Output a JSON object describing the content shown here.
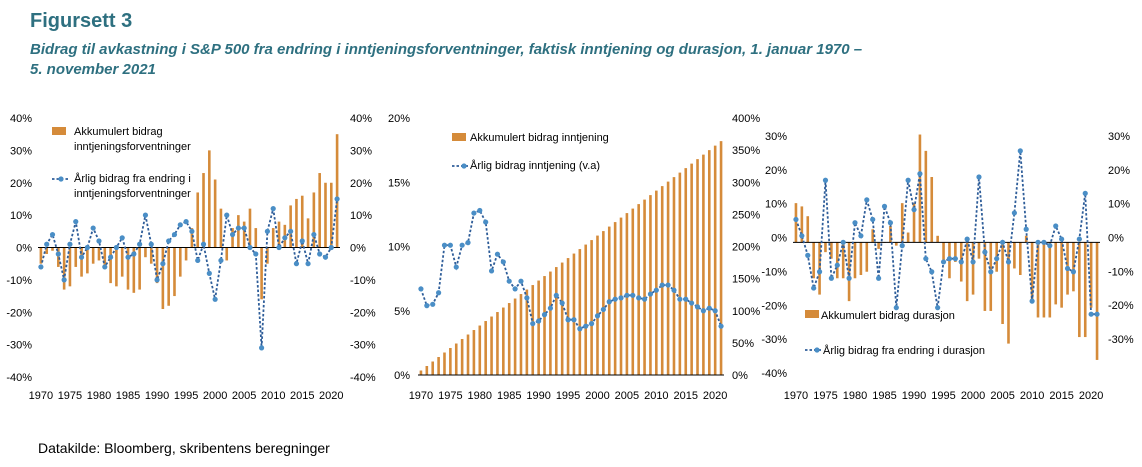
{
  "header": {
    "title": "Figursett 3",
    "subtitle_line1": "Bidrag til avkastning i S&P 500 fra endring i inntjeningsforventninger, faktisk inntjening og durasjon, 1. januar 1970 –",
    "subtitle_line2": "5. november 2021"
  },
  "footer": {
    "source": "Datakilde: Bloomberg, skribentens beregninger"
  },
  "colors": {
    "bar": "#d58b3a",
    "line": "#2e5d99",
    "marker": "#4a8ec6"
  },
  "chart_data": [
    {
      "type": "bar+line",
      "years": [
        1970,
        1971,
        1972,
        1973,
        1974,
        1975,
        1976,
        1977,
        1978,
        1979,
        1980,
        1981,
        1982,
        1983,
        1984,
        1985,
        1986,
        1987,
        1988,
        1989,
        1990,
        1991,
        1992,
        1993,
        1994,
        1995,
        1996,
        1997,
        1998,
        1999,
        2000,
        2001,
        2002,
        2003,
        2004,
        2005,
        2006,
        2007,
        2008,
        2009,
        2010,
        2011,
        2012,
        2013,
        2014,
        2015,
        2016,
        2017,
        2018,
        2019,
        2020,
        2021
      ],
      "x_ticks": [
        "1970",
        "1975",
        "1980",
        "1985",
        "1990",
        "1995",
        "2000",
        "2005",
        "2010",
        "2015",
        "2020"
      ],
      "left_ticks": [
        "40%",
        "30%",
        "20%",
        "10%",
        "0%",
        "-10%",
        "-20%",
        "-30%",
        "-40%"
      ],
      "right_ticks": [
        "40%",
        "30%",
        "20%",
        "10%",
        "0%",
        "-10%",
        "-20%",
        "-30%",
        "-40%"
      ],
      "left_range": [
        -40,
        40
      ],
      "right_range": [
        -40,
        40
      ],
      "bars_axis": "left",
      "line_axis": "right",
      "legend": [
        "Akkumulert bidrag",
        "inntjeningsforventninger",
        "Årlig bidrag fra endring i",
        "inntjeningsforventninger"
      ],
      "bars": [
        -5,
        -2,
        -1,
        -6,
        -13,
        -12,
        -6,
        -9,
        -8,
        -5,
        -4,
        -6,
        -11,
        -12,
        -9,
        -13,
        -14,
        -13,
        -3,
        -5,
        -11,
        -19,
        -18,
        -15,
        -9,
        -4,
        6,
        17,
        23,
        30,
        21,
        12,
        -4,
        6,
        10,
        8,
        12,
        6,
        -16,
        -5,
        6,
        8,
        7,
        13,
        15,
        16,
        9,
        17,
        23,
        20,
        20,
        35
      ],
      "line": [
        -6,
        1,
        4,
        -2,
        -10,
        1,
        8,
        -3,
        0,
        6,
        2,
        -6,
        -3,
        0,
        3,
        -3,
        -2,
        1,
        10,
        1,
        -10,
        -5,
        2,
        4,
        7,
        8,
        5,
        -4,
        1,
        -8,
        -16,
        -4,
        10,
        4,
        6,
        6,
        0,
        -2,
        -31,
        5,
        12,
        0,
        3,
        5,
        -5,
        2,
        -5,
        4,
        -2,
        -3,
        0,
        15
      ]
    },
    {
      "type": "bar+line",
      "years": [
        1970,
        1971,
        1972,
        1973,
        1974,
        1975,
        1976,
        1977,
        1978,
        1979,
        1980,
        1981,
        1982,
        1983,
        1984,
        1985,
        1986,
        1987,
        1988,
        1989,
        1990,
        1991,
        1992,
        1993,
        1994,
        1995,
        1996,
        1997,
        1998,
        1999,
        2000,
        2001,
        2002,
        2003,
        2004,
        2005,
        2006,
        2007,
        2008,
        2009,
        2010,
        2011,
        2012,
        2013,
        2014,
        2015,
        2016,
        2017,
        2018,
        2019,
        2020,
        2021
      ],
      "x_ticks": [
        "1970",
        "1975",
        "1980",
        "1985",
        "1990",
        "1995",
        "2000",
        "2005",
        "2010",
        "2015",
        "2020"
      ],
      "left_ticks": [
        "20%",
        "15%",
        "10%",
        "5%",
        "0%"
      ],
      "right_ticks": [
        "400%",
        "350%",
        "300%",
        "250%",
        "200%",
        "150%",
        "100%",
        "50%",
        "0%"
      ],
      "left_range": [
        0,
        20
      ],
      "right_range": [
        0,
        400
      ],
      "bars_axis": "right",
      "line_axis": "left",
      "legend": [
        "Akkumulert bidrag inntjening",
        "Årlig bidrag  inntjening (v.a)"
      ],
      "bars": [
        7,
        14,
        21,
        28,
        35,
        42,
        49,
        56,
        63,
        70,
        77,
        84,
        91,
        98,
        105,
        112,
        119,
        126,
        133,
        140,
        147,
        154,
        161,
        168,
        175,
        182,
        189,
        196,
        203,
        210,
        217,
        224,
        231,
        238,
        245,
        252,
        259,
        266,
        273,
        280,
        287,
        294,
        301,
        308,
        315,
        322,
        329,
        336,
        343,
        350,
        357,
        364
      ],
      "line": [
        6.7,
        5.4,
        5.5,
        6.4,
        10.1,
        10.1,
        8.4,
        10.1,
        10.3,
        12.6,
        12.8,
        11.9,
        8.1,
        9.4,
        8.8,
        7.3,
        6.7,
        7.3,
        6.0,
        4.0,
        4.2,
        4.7,
        5.2,
        6.2,
        5.6,
        4.3,
        4.3,
        3.6,
        3.8,
        4.0,
        4.6,
        5.1,
        5.7,
        5.9,
        6.0,
        6.2,
        6.2,
        6.0,
        5.9,
        6.3,
        6.6,
        7.0,
        7.0,
        6.6,
        5.9,
        5.9,
        5.6,
        5.3,
        5.0,
        5.2,
        5.0,
        3.8
      ]
    },
    {
      "type": "bar+line",
      "years": [
        1970,
        1971,
        1972,
        1973,
        1974,
        1975,
        1976,
        1977,
        1978,
        1979,
        1980,
        1981,
        1982,
        1983,
        1984,
        1985,
        1986,
        1987,
        1988,
        1989,
        1990,
        1991,
        1992,
        1993,
        1994,
        1995,
        1996,
        1997,
        1998,
        1999,
        2000,
        2001,
        2002,
        2003,
        2004,
        2005,
        2006,
        2007,
        2008,
        2009,
        2010,
        2011,
        2012,
        2013,
        2014,
        2015,
        2016,
        2017,
        2018,
        2019,
        2020,
        2021
      ],
      "x_ticks": [
        "1970",
        "1975",
        "1980",
        "1985",
        "1990",
        "1995",
        "2000",
        "2005",
        "2010",
        "2015",
        "2020"
      ],
      "left_ticks": [
        "30%",
        "20%",
        "10%",
        "0%",
        "-10%",
        "-20%",
        "-30%",
        "-40%"
      ],
      "right_ticks": [
        "30%",
        "20%",
        "10%",
        "0%",
        "-10%",
        "-20%",
        "-30%"
      ],
      "left_range": [
        -40,
        35
      ],
      "right_range": [
        -40,
        35
      ],
      "bars_axis": "left",
      "line_axis": "right",
      "legend": [
        "Akkumulert bidrag durasjon",
        "Årlig bidrag fra endring i durasjon"
      ],
      "bars": [
        12,
        11,
        8,
        -11,
        -16,
        -3,
        -5,
        -11,
        -11,
        -18,
        -11,
        -10,
        -9,
        4,
        -2,
        0,
        5,
        -1,
        12,
        3,
        12,
        33,
        28,
        20,
        2,
        -6,
        -11,
        -6,
        -12,
        -18,
        -16,
        -5,
        -21,
        -21,
        -9,
        -25,
        -31,
        -8,
        -10,
        2,
        -18,
        -23,
        -23,
        -23,
        -19,
        -20,
        -16,
        -15,
        -29,
        -29,
        -20,
        -36
      ],
      "line": [
        7,
        2,
        -4,
        -14,
        -9,
        19,
        -11,
        -7,
        0,
        -11,
        6,
        2,
        13,
        7,
        -11,
        11,
        6,
        -20,
        -1,
        19,
        10,
        21,
        -5,
        -9,
        -20,
        -6,
        -5,
        -5,
        -6,
        1,
        -6,
        20,
        -3,
        -9,
        -5,
        0,
        -6,
        9,
        28,
        4,
        -18,
        0,
        0,
        -1,
        5,
        1,
        -8,
        -9,
        1,
        15,
        -22,
        -22
      ]
    }
  ]
}
